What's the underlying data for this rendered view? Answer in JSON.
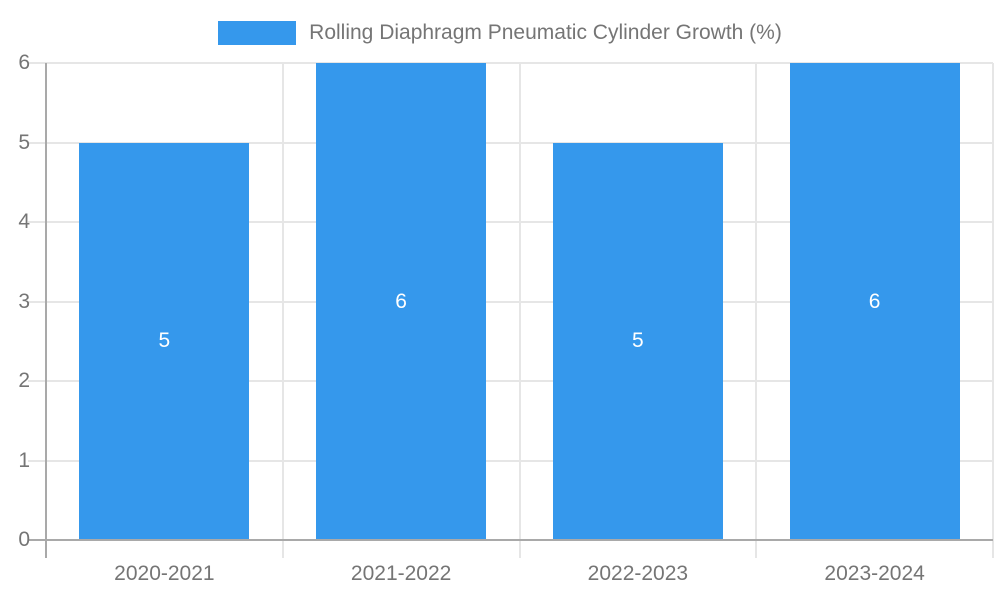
{
  "chart_data": {
    "type": "bar",
    "categories": [
      "2020-2021",
      "2021-2022",
      "2022-2023",
      "2023-2024"
    ],
    "values": [
      5,
      6,
      5,
      6
    ],
    "series_label": "Rolling Diaphragm Pneumatic Cylinder Growth (%)",
    "bar_value_labels": [
      "5",
      "6",
      "5",
      "6"
    ],
    "y_tick_labels": [
      "0",
      "1",
      "2",
      "3",
      "4",
      "5",
      "6"
    ],
    "ylim": [
      0,
      6
    ],
    "grid": true,
    "legend_position": "top",
    "bar_color": "#3598EC",
    "bar_label_color": "#FFFFFF",
    "axis_text_color": "#757575",
    "axis_line_color": "#A9A9A9",
    "gridline_color": "#E6E6E6"
  }
}
